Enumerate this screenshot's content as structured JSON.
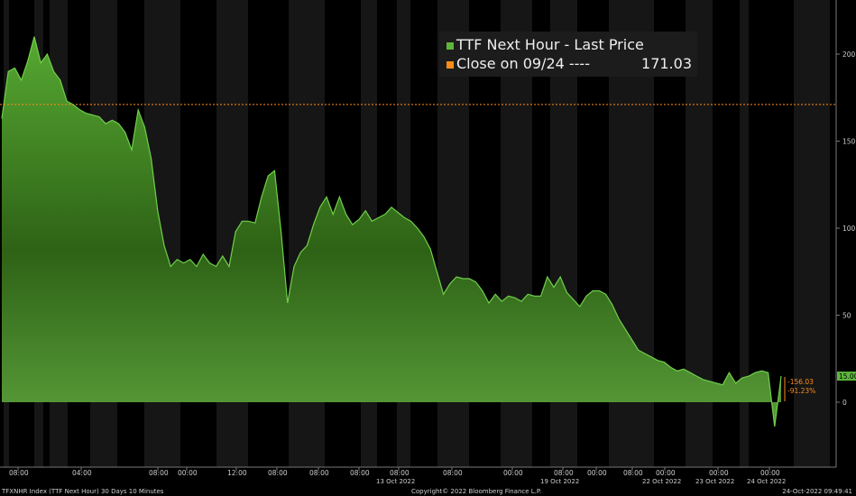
{
  "chart_data": {
    "type": "area",
    "title": "",
    "xlabel": "",
    "ylabel": "",
    "ylim": [
      -45,
      225
    ],
    "yticks": [
      0,
      50,
      100,
      150,
      200
    ],
    "grid": false,
    "legend_position": "top-right",
    "x_labels": [
      {
        "label": "08:00",
        "date": ""
      },
      {
        "label": "04:00",
        "date": ""
      },
      {
        "label": "08:00",
        "date": ""
      },
      {
        "label": "00:00",
        "date": ""
      },
      {
        "label": "12:00",
        "date": ""
      },
      {
        "label": "08:00",
        "date": ""
      },
      {
        "label": "08:00",
        "date": ""
      },
      {
        "label": "08:00",
        "date": ""
      },
      {
        "label": "08:00",
        "date": "13 Oct 2022"
      },
      {
        "label": "08:00",
        "date": ""
      },
      {
        "label": "00:00",
        "date": ""
      },
      {
        "label": "08:00",
        "date": "19 Oct 2022"
      },
      {
        "label": "00:00",
        "date": ""
      },
      {
        "label": "08:00",
        "date": ""
      },
      {
        "label": "00:00",
        "date": "22 Oct 2022"
      },
      {
        "label": "00:00",
        "date": "23 Oct 2022"
      },
      {
        "label": "00:00",
        "date": "24 Oct 2022"
      }
    ],
    "series": [
      {
        "name": "TTF Next Hour - Last Price",
        "color": "#5db63c",
        "values": [
          163,
          190,
          192,
          185,
          196,
          210,
          195,
          200,
          190,
          185,
          173,
          171,
          168,
          166,
          165,
          164,
          160,
          162,
          160,
          155,
          145,
          168,
          158,
          140,
          110,
          90,
          78,
          82,
          80,
          82,
          78,
          85,
          80,
          78,
          84,
          78,
          98,
          104,
          104,
          103,
          118,
          130,
          133,
          98,
          57,
          78,
          86,
          90,
          102,
          112,
          118,
          108,
          118,
          108,
          102,
          105,
          110,
          104,
          106,
          108,
          112,
          109,
          106,
          104,
          100,
          95,
          88,
          75,
          62,
          68,
          72,
          71,
          71,
          69,
          64,
          57,
          62,
          58,
          61,
          60,
          58,
          62,
          61,
          61,
          72,
          66,
          72,
          63,
          59,
          55,
          61,
          64,
          64,
          62,
          56,
          48,
          42,
          36,
          30,
          28,
          26,
          24,
          23,
          20,
          18,
          19,
          17,
          15,
          13,
          12,
          11,
          10,
          17,
          11,
          14,
          15,
          17,
          18,
          17,
          -14,
          15
        ]
      },
      {
        "name": "Close on 09/24 ----",
        "color": "#ff8c1a",
        "value": 171.03
      }
    ],
    "last_value_label": "15.00",
    "annotations": [
      "-156.03",
      "-91.23%"
    ]
  },
  "legend": {
    "series_label": "TTF Next Hour - Last Price",
    "close_label": "Close on 09/24 ----",
    "close_value": "171.03"
  },
  "footer": {
    "left": "TFXNHR Index (TTF Next Hour) 30 Days 10 Minutes",
    "center": "Copyright© 2022 Bloomberg Finance L.P.",
    "right": "24-Oct-2022 09:49:41"
  },
  "colors": {
    "background": "#000000",
    "shade_band": "#161616",
    "area_top": "#56a832",
    "area_bottom": "#2a5a12",
    "line": "#6fd04a",
    "close_line": "#ff8c1a",
    "annotation": "#ff8c1a",
    "axis_text": "#cccccc"
  }
}
